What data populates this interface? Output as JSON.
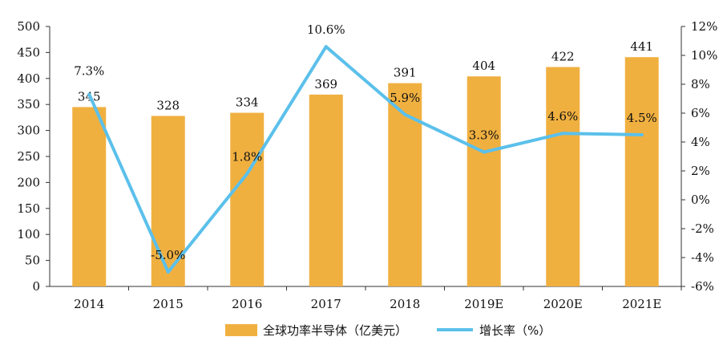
{
  "chart_data": {
    "type": "bar+line",
    "categories": [
      "2014",
      "2015",
      "2016",
      "2017",
      "2018",
      "2019E",
      "2020E",
      "2021E"
    ],
    "series": [
      {
        "name": "全球功率半导体（亿美元）",
        "type": "bar",
        "axis": "left",
        "values": [
          345,
          328,
          334,
          369,
          391,
          404,
          422,
          441
        ],
        "labels": [
          "345",
          "328",
          "334",
          "369",
          "391",
          "404",
          "422",
          "441"
        ],
        "color": "#F0B040"
      },
      {
        "name": "增长率（%）",
        "type": "line",
        "axis": "right",
        "values": [
          7.3,
          -5.0,
          1.8,
          10.6,
          5.9,
          3.3,
          4.6,
          4.5
        ],
        "labels": [
          "7.3%",
          "-5.0%",
          "1.8%",
          "10.6%",
          "5.9%",
          "3.3%",
          "4.6%",
          "4.5%"
        ],
        "color": "#5BC0EB"
      }
    ],
    "y_left": {
      "min": 0,
      "max": 500,
      "step": 50,
      "tick_labels": [
        "0",
        "50",
        "100",
        "150",
        "200",
        "250",
        "300",
        "350",
        "400",
        "450",
        "500"
      ]
    },
    "y_right": {
      "min": -6,
      "max": 12,
      "step": 2,
      "tick_labels": [
        "-6%",
        "-4%",
        "-2%",
        "0%",
        "2%",
        "4%",
        "6%",
        "8%",
        "10%",
        "12%"
      ]
    },
    "grid": false,
    "legend_position": "bottom"
  }
}
